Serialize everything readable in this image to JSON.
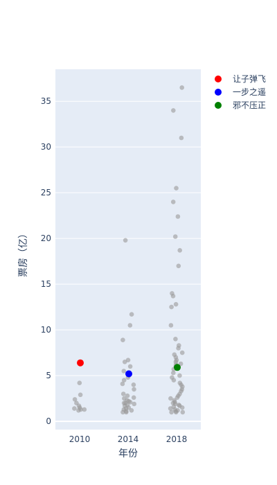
{
  "chart_data": {
    "type": "scatter",
    "xlabel": "年份",
    "ylabel": "票房（亿）",
    "x_categories": [
      "2010",
      "2014",
      "2018"
    ],
    "ylim": [
      -0.9,
      38.5
    ],
    "y_ticks": [
      0,
      5,
      10,
      15,
      20,
      25,
      30,
      35
    ],
    "grid": true,
    "legend_position": "top-right",
    "background_points": {
      "color": "#999999",
      "values": {
        "2010": [
          4.2,
          2.9,
          2.4,
          2.0,
          1.7,
          1.5,
          1.4,
          1.3,
          1.3,
          1.2
        ],
        "2014": [
          19.8,
          11.7,
          10.5,
          8.9,
          6.7,
          6.5,
          6.0,
          5.5,
          5.0,
          4.8,
          4.5,
          4.1,
          4.0,
          3.5,
          3.0,
          2.8,
          2.6,
          2.5,
          2.3,
          2.2,
          2.1,
          2.0,
          2.0,
          1.9,
          1.8,
          1.7,
          1.5,
          1.4,
          1.3,
          1.2,
          1.1,
          1.0,
          1.0
        ],
        "2018": [
          36.5,
          34.0,
          31.0,
          25.5,
          24.0,
          22.4,
          20.2,
          18.7,
          17.0,
          14.0,
          13.7,
          12.8,
          12.5,
          10.5,
          9.0,
          8.3,
          8.0,
          7.5,
          7.3,
          7.0,
          6.7,
          6.5,
          6.3,
          6.2,
          6.0,
          5.7,
          5.3,
          5.0,
          4.8,
          4.5,
          4.2,
          4.0,
          3.8,
          3.5,
          3.3,
          3.0,
          2.8,
          2.6,
          2.5,
          2.3,
          2.1,
          2.0,
          1.9,
          1.8,
          1.7,
          1.6,
          1.5,
          1.4,
          1.3,
          1.2,
          1.1,
          1.0,
          1.0,
          1.0
        ]
      }
    },
    "series": [
      {
        "name": "让子弹飞",
        "color": "#ff0000",
        "x": "2010",
        "y": 6.4
      },
      {
        "name": "一步之遥",
        "color": "#0000ff",
        "x": "2014",
        "y": 5.2
      },
      {
        "name": "邪不压正",
        "color": "#008000",
        "x": "2018",
        "y": 5.9
      }
    ]
  }
}
